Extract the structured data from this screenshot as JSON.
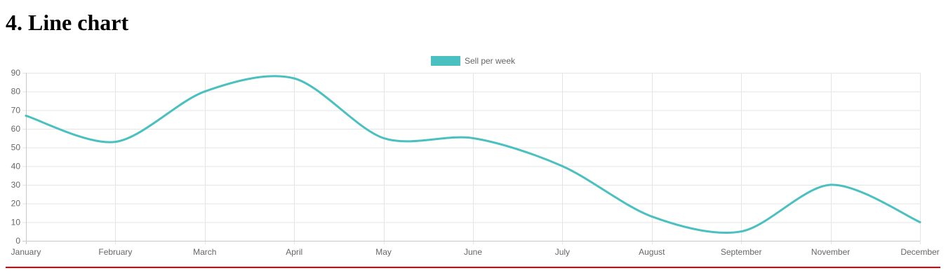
{
  "page": {
    "title": "4. Line chart"
  },
  "chart_data": {
    "type": "line",
    "categories": [
      "January",
      "February",
      "March",
      "April",
      "May",
      "June",
      "July",
      "August",
      "September",
      "November",
      "December"
    ],
    "series": [
      {
        "name": "Sell per week",
        "values": [
          67,
          53,
          80,
          87,
          55,
          55,
          40,
          13,
          5,
          30,
          10
        ],
        "color": "#4bc0c0"
      }
    ],
    "ylim": [
      0,
      90
    ],
    "yticks": [
      0,
      10,
      20,
      30,
      40,
      50,
      60,
      70,
      80,
      90
    ],
    "grid": true,
    "legend": "top-center",
    "gridColor": "#e5e5e5",
    "axisColor": "#c8c8c8"
  },
  "divider": {
    "color": "#e60000"
  }
}
